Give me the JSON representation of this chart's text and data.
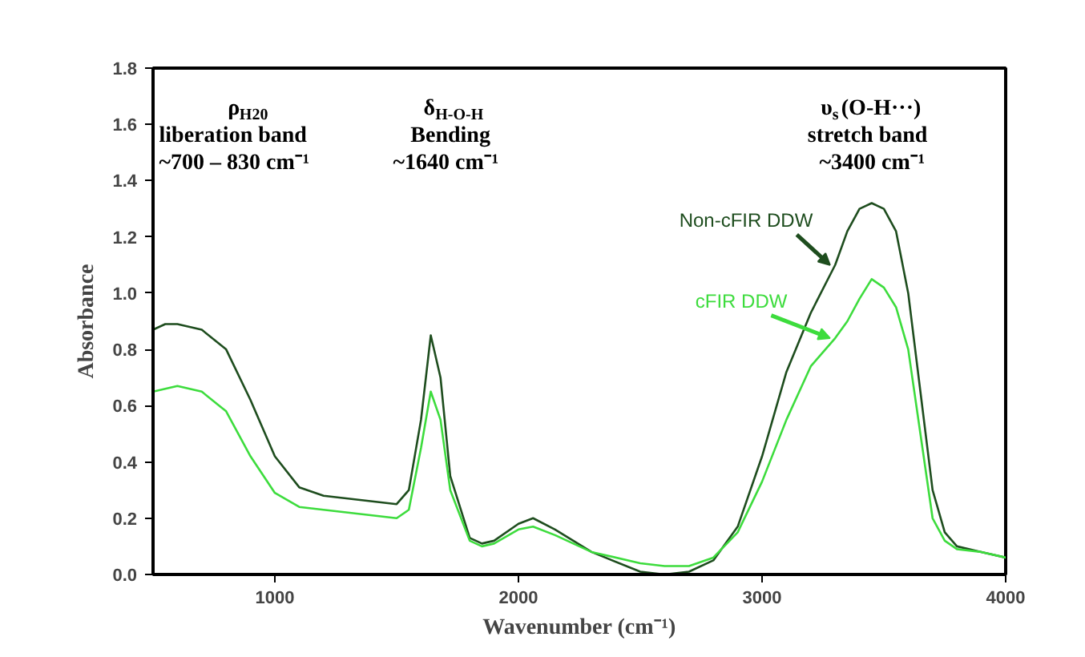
{
  "chart_data": {
    "type": "line",
    "xlabel": "Wavenumber (cm⁻¹)",
    "ylabel": "Absorbance",
    "x": [
      500,
      550,
      600,
      700,
      800,
      900,
      1000,
      1100,
      1200,
      1300,
      1400,
      1500,
      1550,
      1600,
      1640,
      1680,
      1720,
      1800,
      1850,
      1900,
      2000,
      2060,
      2150,
      2300,
      2500,
      2600,
      2700,
      2800,
      2900,
      3000,
      3100,
      3200,
      3300,
      3350,
      3400,
      3450,
      3500,
      3550,
      3600,
      3650,
      3700,
      3750,
      3800,
      3900,
      4000
    ],
    "series": [
      {
        "name": "Non-cFIR DDW",
        "color": "#1e4d1e",
        "values": [
          0.87,
          0.89,
          0.89,
          0.87,
          0.8,
          0.62,
          0.42,
          0.31,
          0.28,
          0.27,
          0.26,
          0.25,
          0.3,
          0.55,
          0.85,
          0.7,
          0.35,
          0.13,
          0.11,
          0.12,
          0.18,
          0.2,
          0.16,
          0.08,
          0.01,
          0.0,
          0.01,
          0.05,
          0.17,
          0.42,
          0.72,
          0.93,
          1.1,
          1.22,
          1.3,
          1.32,
          1.3,
          1.22,
          1.0,
          0.65,
          0.3,
          0.15,
          0.1,
          0.08,
          0.06
        ]
      },
      {
        "name": "cFIR DDW",
        "color": "#3ddc3d",
        "values": [
          0.65,
          0.66,
          0.67,
          0.65,
          0.58,
          0.42,
          0.29,
          0.24,
          0.23,
          0.22,
          0.21,
          0.2,
          0.23,
          0.45,
          0.65,
          0.55,
          0.3,
          0.12,
          0.1,
          0.11,
          0.16,
          0.17,
          0.14,
          0.08,
          0.04,
          0.03,
          0.03,
          0.06,
          0.15,
          0.33,
          0.55,
          0.74,
          0.84,
          0.9,
          0.98,
          1.05,
          1.02,
          0.95,
          0.8,
          0.5,
          0.2,
          0.12,
          0.09,
          0.08,
          0.06
        ]
      }
    ],
    "xlim": [
      500,
      4000
    ],
    "xticks": [
      1000,
      2000,
      3000,
      4000
    ],
    "ylim": [
      0,
      1.8
    ],
    "yticks": [
      {
        "value": 0,
        "label": "0.0"
      },
      0.2,
      0.4,
      0.6,
      0.8,
      {
        "value": 1,
        "label": "1.0"
      },
      1.2,
      1.4,
      1.6,
      1.8
    ],
    "annotations": [
      "ρ$_{H20}$\nliberation band\n~700 – 830 cm⁻¹",
      "δ$_{H-O-H}$\nBending\n~1640 cm⁻¹",
      "υ$_{s}$(O-H···)\nstretch band\n~3400 cm⁻¹"
    ]
  }
}
